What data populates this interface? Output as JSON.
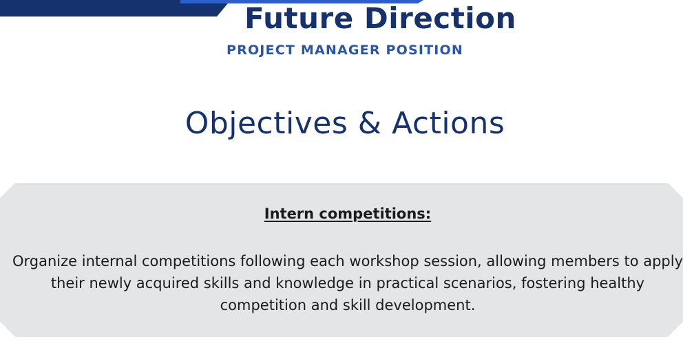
{
  "colors": {
    "band_dark": "#15316e",
    "band_accent": "#2f5fc8",
    "title": "#15316e",
    "subtitle": "#2a55a8",
    "card_bg": "#e4e5e6"
  },
  "header": {
    "title": "Future Direction",
    "subtitle": "PROJECT MANAGER POSITION"
  },
  "section": {
    "heading": "Objectives & Actions"
  },
  "card": {
    "title": "Intern competitions:",
    "body": "Organize internal competitions following each workshop session, allowing members to apply their newly acquired skills and knowledge in practical scenarios, fostering healthy competition and skill development."
  }
}
